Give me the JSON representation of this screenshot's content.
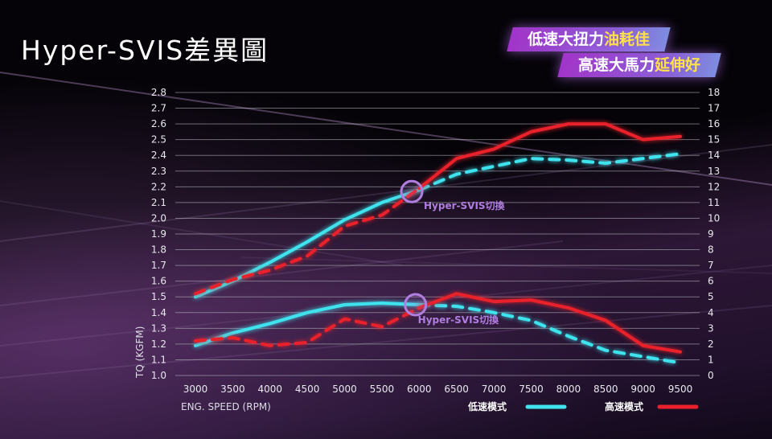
{
  "title": "Hyper-SVIS差異圖",
  "banners": [
    {
      "white": "低速大扭力",
      "yellow": "油耗佳"
    },
    {
      "white": "高速大馬力",
      "yellow": "延伸好"
    }
  ],
  "colors": {
    "low_speed": "#3fe3ee",
    "high_speed": "#e8212b",
    "annotation": "#b07ee0"
  },
  "chart_data": {
    "type": "line",
    "title": "Hyper-SVIS差異圖",
    "xlabel": "ENG. SPEED (RPM)",
    "ylabel_left": "TQ (KGFM)",
    "ylabel_right": "",
    "x": [
      3000,
      3500,
      4000,
      4500,
      5000,
      5500,
      6000,
      6500,
      7000,
      7500,
      8000,
      8500,
      9000,
      9500
    ],
    "x_ticks": [
      "3000",
      "3500",
      "4000",
      "4500",
      "5000",
      "5500",
      "6000",
      "6500",
      "7000",
      "7500",
      "8000",
      "8500",
      "9000",
      "9500"
    ],
    "ylim_left": [
      1.0,
      2.8
    ],
    "ylim_right": [
      0,
      18
    ],
    "y_ticks_left": [
      "1.0",
      "1.1",
      "1.2",
      "1.3",
      "1.4",
      "1.5",
      "1.6",
      "1.7",
      "1.8",
      "1.9",
      "2.0",
      "2.1",
      "2.2",
      "2.3",
      "2.4",
      "2.5",
      "2.6",
      "2.7",
      "2.8"
    ],
    "y_ticks_right": [
      "0",
      "1",
      "2",
      "3",
      "4",
      "5",
      "6",
      "7",
      "8",
      "9",
      "10",
      "11",
      "12",
      "13",
      "14",
      "15",
      "16",
      "17",
      "18"
    ],
    "grid": true,
    "legend": [
      {
        "label": "低速模式",
        "series": "low"
      },
      {
        "label": "高速模式",
        "series": "high"
      }
    ],
    "legend_position": "bottom-right",
    "switch_rpm": 6000,
    "series": [
      {
        "name": "低速模式 power",
        "mode": "low",
        "axis": "right",
        "values": [
          5.0,
          6.0,
          7.2,
          8.5,
          9.9,
          11.0,
          11.8,
          12.8,
          13.3,
          13.8,
          13.7,
          13.5,
          13.8,
          14.1
        ]
      },
      {
        "name": "高速模式 power",
        "mode": "high",
        "axis": "right",
        "values": [
          5.2,
          6.1,
          6.7,
          7.6,
          9.5,
          10.2,
          11.9,
          13.8,
          14.4,
          15.5,
          16.0,
          16.0,
          15.0,
          15.2
        ]
      },
      {
        "name": "低速模式 torque",
        "mode": "low",
        "axis": "left",
        "values": [
          1.19,
          1.27,
          1.33,
          1.4,
          1.45,
          1.46,
          1.45,
          1.44,
          1.4,
          1.35,
          1.25,
          1.16,
          1.12,
          1.08
        ]
      },
      {
        "name": "高速模式 torque",
        "mode": "high",
        "axis": "left",
        "values": [
          1.22,
          1.24,
          1.19,
          1.21,
          1.36,
          1.31,
          1.43,
          1.52,
          1.47,
          1.48,
          1.43,
          1.35,
          1.19,
          1.15
        ]
      }
    ],
    "annotations": [
      {
        "text": "Hyper-SVIS切換",
        "x": 5900,
        "y_left": 2.17
      },
      {
        "text": "Hyper-SVIS切換",
        "x": 5950,
        "y_left": 1.45
      }
    ]
  }
}
